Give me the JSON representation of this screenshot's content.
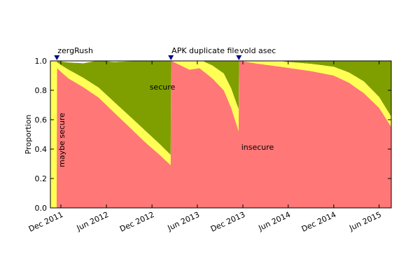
{
  "chart_data": {
    "type": "area",
    "ylabel": "Proportion",
    "ylim": [
      0,
      1.0
    ],
    "y_ticks": [
      "0.0",
      "0.2",
      "0.4",
      "0.6",
      "0.8",
      "1.0"
    ],
    "x_ticks": [
      "Dec 2011",
      "Jun 2012",
      "Dec 2012",
      "Jun 2013",
      "Dec 2013",
      "Jun 2014",
      "Dec 2014",
      "Jun 2015"
    ],
    "xlim": [
      "2011-10-20",
      "2015-07-20"
    ],
    "stacking": "stacked, bottom to top: insecure, maybe secure, secure",
    "colors": {
      "insecure": "#ff7777",
      "maybe_secure": "#ffff55",
      "secure": "#7f9f00",
      "event_marker": "#00008b"
    },
    "region_labels": {
      "secure": "secure",
      "insecure": "insecure",
      "maybe_secure": "maybe secure"
    },
    "events": [
      {
        "label": "zergRush",
        "date": "2011-11-15"
      },
      {
        "label": "APK duplicate file",
        "date": "2013-02-15"
      },
      {
        "label": "vold asec",
        "date": "2013-11-15"
      }
    ],
    "series": [
      {
        "name": "insecure",
        "points": [
          [
            "2011-11-14",
            0.0
          ],
          [
            "2011-11-16",
            0.95
          ],
          [
            "2011-12-05",
            0.92
          ],
          [
            "2012-01-01",
            0.88
          ],
          [
            "2012-03-01",
            0.82
          ],
          [
            "2012-05-01",
            0.75
          ],
          [
            "2012-07-01",
            0.65
          ],
          [
            "2012-09-01",
            0.55
          ],
          [
            "2012-11-01",
            0.45
          ],
          [
            "2013-01-01",
            0.36
          ],
          [
            "2013-02-14",
            0.29
          ],
          [
            "2013-02-16",
            1.0
          ],
          [
            "2013-05-01",
            0.94
          ],
          [
            "2013-06-10",
            0.95
          ],
          [
            "2013-08-01",
            0.88
          ],
          [
            "2013-09-15",
            0.8
          ],
          [
            "2013-10-15",
            0.68
          ],
          [
            "2013-11-14",
            0.52
          ],
          [
            "2013-11-16",
            1.0
          ],
          [
            "2014-02-01",
            0.98
          ],
          [
            "2014-05-01",
            0.96
          ],
          [
            "2014-09-01",
            0.93
          ],
          [
            "2014-12-01",
            0.9
          ],
          [
            "2015-02-01",
            0.85
          ],
          [
            "2015-04-01",
            0.78
          ],
          [
            "2015-06-01",
            0.68
          ],
          [
            "2015-07-20",
            0.55
          ]
        ]
      },
      {
        "name": "maybe secure",
        "points": [
          [
            "2011-10-20",
            1.0
          ],
          [
            "2011-11-14",
            1.0
          ],
          [
            "2011-11-16",
            0.04
          ],
          [
            "2012-01-01",
            0.06
          ],
          [
            "2012-06-01",
            0.07
          ],
          [
            "2012-11-01",
            0.08
          ],
          [
            "2013-02-14",
            0.07
          ],
          [
            "2013-02-16",
            0.0
          ],
          [
            "2013-04-01",
            0.06
          ],
          [
            "2013-07-01",
            0.07
          ],
          [
            "2013-11-14",
            0.15
          ],
          [
            "2013-11-16",
            0.0
          ],
          [
            "2014-02-01",
            0.02
          ],
          [
            "2014-06-01",
            0.04
          ],
          [
            "2014-12-01",
            0.06
          ],
          [
            "2015-04-01",
            0.08
          ],
          [
            "2015-07-20",
            0.07
          ]
        ]
      },
      {
        "name": "secure",
        "points": [
          [
            "2011-11-16",
            0.01
          ],
          [
            "2012-03-01",
            0.1
          ],
          [
            "2012-07-01",
            0.27
          ],
          [
            "2012-11-01",
            0.47
          ],
          [
            "2013-02-14",
            0.64
          ],
          [
            "2013-02-16",
            0.0
          ],
          [
            "2013-06-01",
            0.0
          ],
          [
            "2013-11-14",
            0.33
          ],
          [
            "2013-11-16",
            0.0
          ],
          [
            "2014-05-01",
            0.0
          ],
          [
            "2014-12-01",
            0.04
          ],
          [
            "2015-03-01",
            0.12
          ],
          [
            "2015-07-20",
            0.38
          ]
        ]
      }
    ]
  }
}
